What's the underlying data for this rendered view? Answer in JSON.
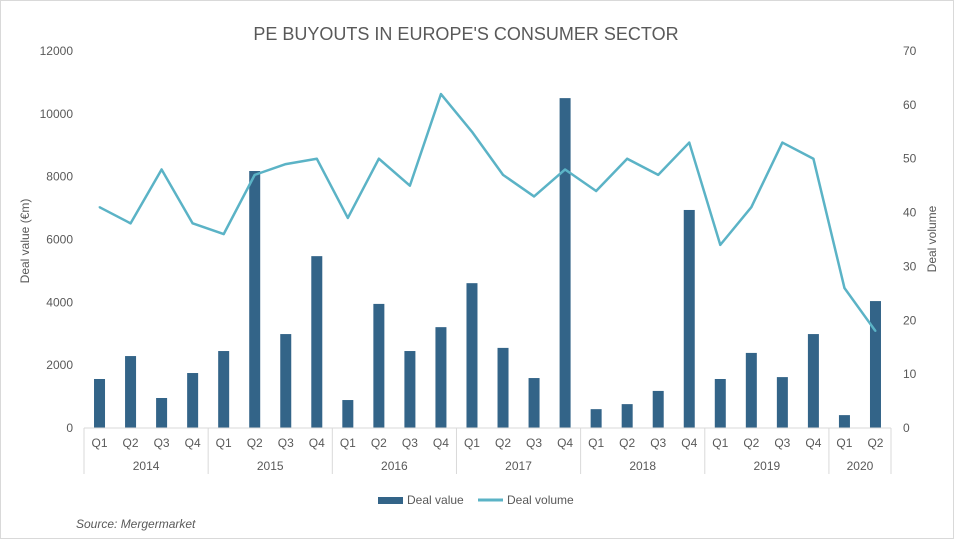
{
  "chart_data": {
    "type": "bar+line",
    "title": "PE BUYOUTS IN EUROPE'S CONSUMER SECTOR",
    "ylabel": "Deal value (€m)",
    "y2label": "Deal volume",
    "ylim": [
      0,
      12000
    ],
    "y2lim": [
      0,
      70
    ],
    "yticks": [
      0,
      2000,
      4000,
      6000,
      8000,
      10000,
      12000
    ],
    "y2ticks": [
      0,
      10,
      20,
      30,
      40,
      50,
      60,
      70
    ],
    "years": [
      "2014",
      "2015",
      "2016",
      "2017",
      "2018",
      "2019",
      "2020"
    ],
    "year_quarters": [
      4,
      4,
      4,
      4,
      4,
      4,
      2
    ],
    "categories": [
      "Q1",
      "Q2",
      "Q3",
      "Q4",
      "Q1",
      "Q2",
      "Q3",
      "Q4",
      "Q1",
      "Q2",
      "Q3",
      "Q4",
      "Q1",
      "Q2",
      "Q3",
      "Q4",
      "Q1",
      "Q2",
      "Q3",
      "Q4",
      "Q1",
      "Q2",
      "Q3",
      "Q4",
      "Q1",
      "Q2"
    ],
    "series": [
      {
        "name": "Deal value",
        "type": "bar",
        "axis": "left",
        "color": "#336488",
        "values": [
          1560,
          2290,
          955,
          1750,
          2450,
          8180,
          2990,
          5470,
          890,
          3950,
          2450,
          3210,
          4610,
          2550,
          1590,
          10500,
          600,
          760,
          1180,
          6940,
          1560,
          2390,
          1620,
          2990,
          410,
          4040
        ]
      },
      {
        "name": "Deal volume",
        "type": "line",
        "axis": "right",
        "color": "#5bb3c6",
        "values": [
          41,
          38,
          48,
          38,
          36,
          47,
          49,
          50,
          39,
          50,
          45,
          62,
          55,
          47,
          43,
          48,
          44,
          50,
          47,
          53,
          34,
          41,
          53,
          50,
          26,
          18
        ]
      }
    ],
    "legend_position": "bottom",
    "grid": false,
    "source": "Source: Mergermarket"
  }
}
